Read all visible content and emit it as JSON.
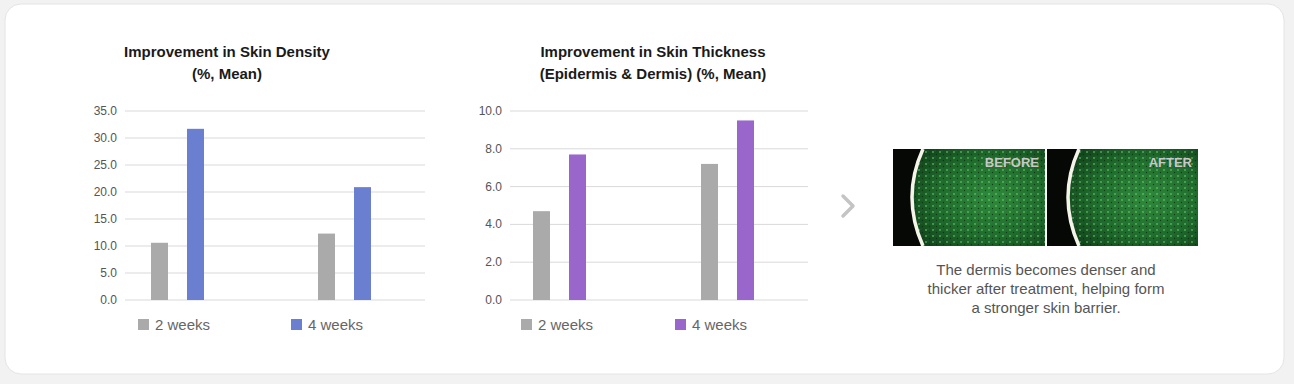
{
  "chart_data": [
    {
      "type": "bar",
      "title": "Improvement in Skin Density",
      "subtitle": "(%, Mean)",
      "categories": [
        null,
        null
      ],
      "series": [
        {
          "name": "2 weeks",
          "color": "#aaaaaa",
          "values": [
            10.6,
            12.3
          ]
        },
        {
          "name": "4 weeks",
          "color": "#6b7fd1",
          "values": [
            31.7,
            20.9
          ]
        }
      ],
      "ylim": [
        0,
        35
      ],
      "yticks": [
        {
          "value": 0,
          "label": "0.0"
        },
        {
          "value": 5,
          "label": "5.0"
        },
        {
          "value": 10,
          "label": "10.0"
        },
        {
          "value": 15,
          "label": "15.0"
        },
        {
          "value": 20,
          "label": "20.0"
        },
        {
          "value": 25,
          "label": "25.0"
        },
        {
          "value": 30,
          "label": "30.0"
        },
        {
          "value": 35,
          "label": "35.0"
        }
      ],
      "grid": true,
      "legend": "bottom"
    },
    {
      "type": "bar",
      "title": "Improvement in Skin Thickness",
      "subtitle": "(Epidermis & Dermis) (%, Mean)",
      "categories": [
        null,
        null
      ],
      "series": [
        {
          "name": "2 weeks",
          "color": "#aaaaaa",
          "values": [
            4.7,
            7.2
          ]
        },
        {
          "name": "4 weeks",
          "color": "#9966cc",
          "values": [
            7.7,
            9.5
          ]
        }
      ],
      "ylim": [
        0,
        10
      ],
      "yticks": [
        {
          "value": 0,
          "label": "0.0"
        },
        {
          "value": 2,
          "label": "2.0"
        },
        {
          "value": 4,
          "label": "4.0"
        },
        {
          "value": 6,
          "label": "6.0"
        },
        {
          "value": 8,
          "label": "8.0"
        },
        {
          "value": 10,
          "label": "10.0"
        }
      ],
      "grid": true,
      "legend": "bottom"
    }
  ],
  "panel": {
    "before_label": "BEFORE",
    "after_label": "AFTER",
    "caption": [
      "The dermis becomes denser and",
      "thicker after treatment, helping form",
      "a stronger skin barrier."
    ]
  }
}
